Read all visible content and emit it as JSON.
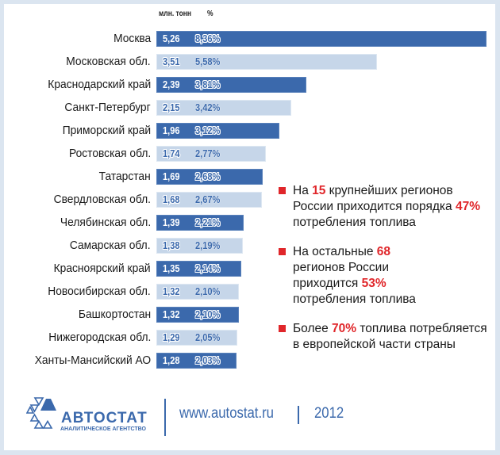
{
  "header": {
    "col_value": "млн. тонн",
    "col_pct": "%"
  },
  "chart_data": {
    "type": "bar",
    "orientation": "horizontal",
    "title": "",
    "xlabel": "",
    "ylabel": "",
    "columns": [
      "млн. тонн",
      "%"
    ],
    "categories": [
      "Москва",
      "Московская обл.",
      "Краснодарский край",
      "Санкт-Петербург",
      "Приморский край",
      "Ростовская обл.",
      "Татарстан",
      "Свердловская обл.",
      "Челябинская обл.",
      "Самарская обл.",
      "Красноярский край",
      "Новосибирская обл.",
      "Башкортостан",
      "Нижегородская обл.",
      "Ханты-Мансийский АО"
    ],
    "series": [
      {
        "name": "млн. тонн",
        "values": [
          5.26,
          3.51,
          2.39,
          2.15,
          1.96,
          1.74,
          1.69,
          1.68,
          1.39,
          1.38,
          1.35,
          1.32,
          1.32,
          1.29,
          1.28
        ]
      },
      {
        "name": "%",
        "values": [
          8.36,
          5.58,
          3.81,
          3.42,
          3.12,
          2.77,
          2.68,
          2.67,
          2.21,
          2.19,
          2.14,
          2.1,
          2.1,
          2.05,
          2.03
        ]
      }
    ],
    "grid": false,
    "legend": "none"
  },
  "rows": [
    {
      "label": "Москва",
      "value": "5,26",
      "pct": "8,36%"
    },
    {
      "label": "Московская обл.",
      "value": "3,51",
      "pct": "5,58%"
    },
    {
      "label": "Краснодарский край",
      "value": "2,39",
      "pct": "3,81%"
    },
    {
      "label": "Санкт-Петербург",
      "value": "2,15",
      "pct": "3,42%"
    },
    {
      "label": "Приморский край",
      "value": "1,96",
      "pct": "3,12%"
    },
    {
      "label": "Ростовская обл.",
      "value": "1,74",
      "pct": "2,77%"
    },
    {
      "label": "Татарстан",
      "value": "1,69",
      "pct": "2,68%"
    },
    {
      "label": "Свердловская обл.",
      "value": "1,68",
      "pct": "2,67%"
    },
    {
      "label": "Челябинская обл.",
      "value": "1,39",
      "pct": "2,21%"
    },
    {
      "label": "Самарская обл.",
      "value": "1,38",
      "pct": "2,19%"
    },
    {
      "label": "Красноярский край",
      "value": "1,35",
      "pct": "2,14%"
    },
    {
      "label": "Новосибирская обл.",
      "value": "1,32",
      "pct": "2,10%"
    },
    {
      "label": "Башкортостан",
      "value": "1,32",
      "pct": "2,10%"
    },
    {
      "label": "Нижегородская обл.",
      "value": "1,29",
      "pct": "2,05%"
    },
    {
      "label": "Ханты-Мансийский АО",
      "value": "1,28",
      "pct": "2,03%"
    }
  ],
  "notes": [
    {
      "parts": [
        "На ",
        "15",
        " крупнейших регионов России приходится порядка ",
        "47%",
        " потребления топлива"
      ]
    },
    {
      "parts": [
        "На остальные ",
        "68",
        " регионов России приходится ",
        "53%",
        " потребления топлива"
      ]
    },
    {
      "parts": [
        "Более ",
        "70%",
        " топлива потребляется в европейской части страны"
      ]
    }
  ],
  "footer": {
    "logo_name": "АВТОСТАТ",
    "logo_sub": "АНАЛИТИЧЕСКОЕ АГЕНТСТВО",
    "url": "www.autostat.ru",
    "year": "2012"
  },
  "colors": {
    "dark_bar": "#3b69ac",
    "light_bar": "#c6d6e9",
    "accent_red": "#e0262a",
    "frame": "#dbe5f0"
  }
}
